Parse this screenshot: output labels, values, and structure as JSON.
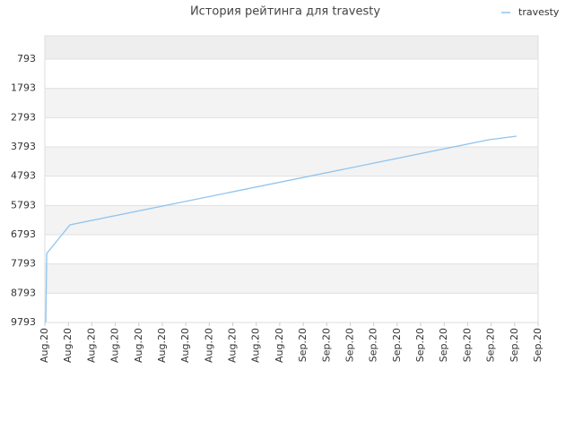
{
  "chart_data": {
    "type": "line",
    "title": "История рейтинга для travesty",
    "x": [
      0.04,
      0.08,
      1.07,
      18.9,
      20.08
    ],
    "series": [
      {
        "name": "travesty",
        "color": "#90c4ee",
        "values": [
          9793,
          7435,
          6456,
          3548,
          3425
        ]
      }
    ],
    "xlim": [
      0,
      21
    ],
    "xticks": [
      {
        "value": 0,
        "label": "Aug.20"
      },
      {
        "value": 1,
        "label": "Aug.20"
      },
      {
        "value": 2,
        "label": "Aug.20"
      },
      {
        "value": 3,
        "label": "Aug.20"
      },
      {
        "value": 4,
        "label": "Aug.20"
      },
      {
        "value": 5,
        "label": "Aug.20"
      },
      {
        "value": 6,
        "label": "Aug.20"
      },
      {
        "value": 7,
        "label": "Aug.20"
      },
      {
        "value": 8,
        "label": "Aug.20"
      },
      {
        "value": 9,
        "label": "Aug.20"
      },
      {
        "value": 10,
        "label": "Aug.20"
      },
      {
        "value": 11,
        "label": "Sep.20"
      },
      {
        "value": 12,
        "label": "Sep.20"
      },
      {
        "value": 13,
        "label": "Sep.20"
      },
      {
        "value": 14,
        "label": "Sep.20"
      },
      {
        "value": 15,
        "label": "Sep.20"
      },
      {
        "value": 16,
        "label": "Sep.20"
      },
      {
        "value": 17,
        "label": "Sep.20"
      },
      {
        "value": 18,
        "label": "Sep.20"
      },
      {
        "value": 19,
        "label": "Sep.20"
      },
      {
        "value": 20,
        "label": "Sep.20"
      },
      {
        "value": 21,
        "label": "Sep.20"
      }
    ],
    "ylim": [
      9793,
      -3
    ],
    "yticks": [
      793,
      1793,
      2793,
      3793,
      4793,
      5793,
      6793,
      7793,
      8793,
      9793
    ],
    "legend": "top-right"
  }
}
